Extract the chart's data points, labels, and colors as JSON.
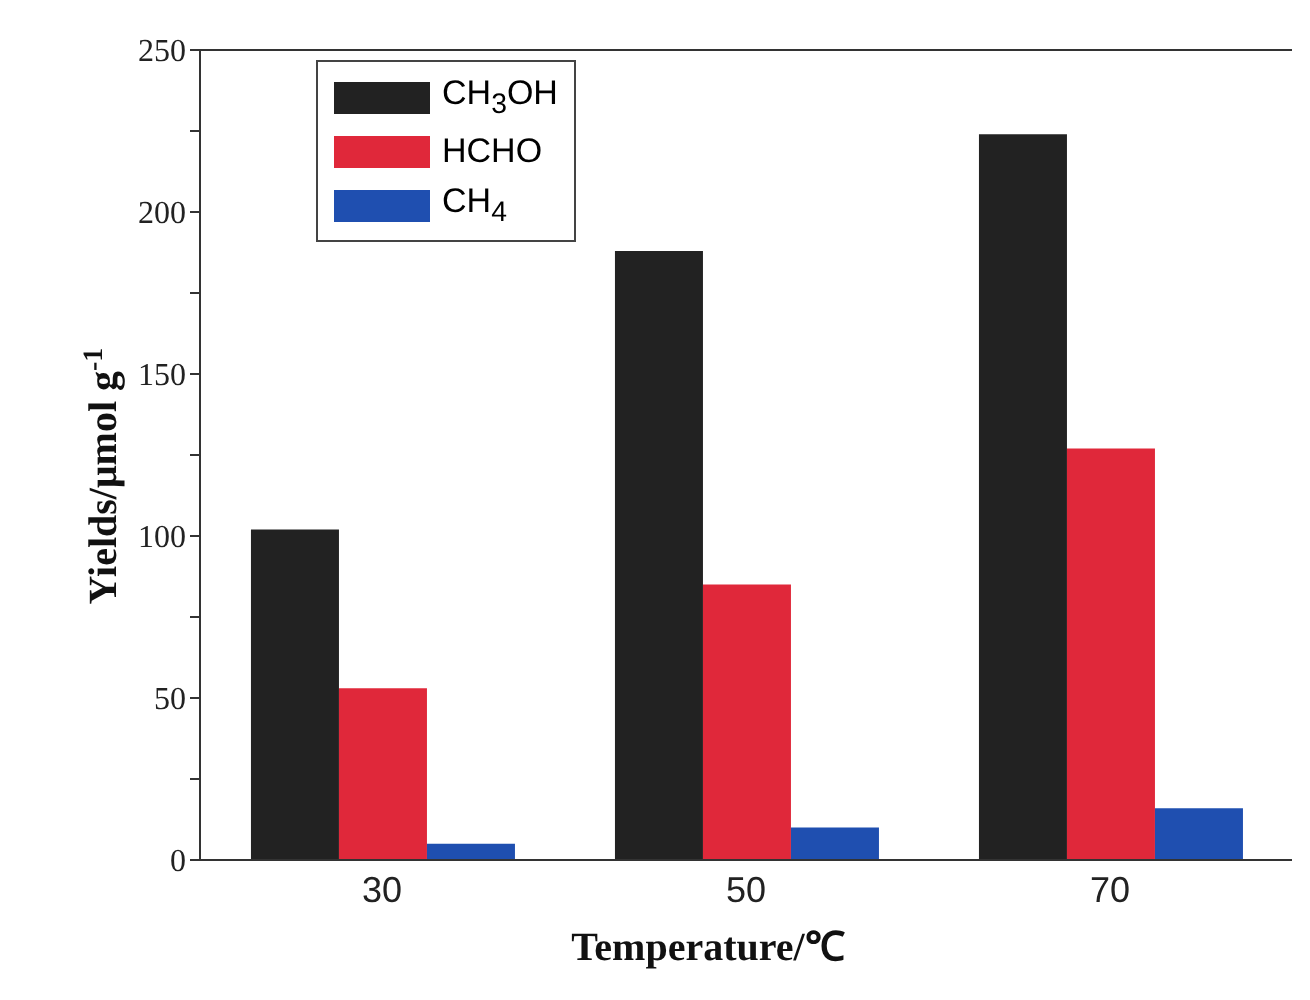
{
  "chart_data": {
    "type": "bar",
    "xlabel": "Temperature/℃",
    "ylabel": "Yields/μmol g$^{-1}$",
    "categories": [
      "30",
      "50",
      "70"
    ],
    "series": [
      {
        "name": "CH$_{3}$OH",
        "color": "#222222",
        "values": [
          102,
          188,
          224
        ]
      },
      {
        "name": "HCHO",
        "color": "#e0283a",
        "values": [
          53,
          85,
          127
        ]
      },
      {
        "name": "CH$_{4}$",
        "color": "#1f4fb0",
        "values": [
          5,
          10,
          16
        ]
      }
    ],
    "ylim": [
      0,
      250
    ],
    "yticks": [
      0,
      {
        "value": 25,
        "label": null
      },
      50,
      {
        "value": 75,
        "label": null
      },
      100,
      {
        "value": 125,
        "label": null
      },
      150,
      {
        "value": 175,
        "label": null
      },
      200,
      {
        "value": 225,
        "label": null
      },
      250
    ],
    "grid": false,
    "legend": "top left"
  }
}
